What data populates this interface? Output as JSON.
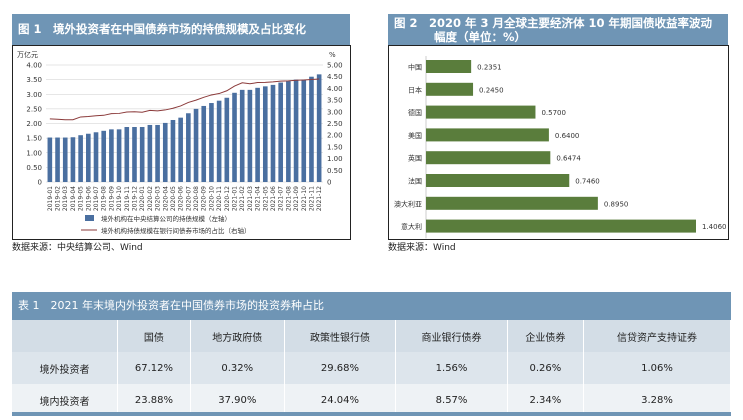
{
  "fig1": {
    "title": "图 1　境外投资者在中国债券市场的持债规模及占比变化",
    "source": "数据来源：中央结算公司、Wind",
    "chart_data": {
      "type": "bar+line",
      "left_unit": "万亿元",
      "right_unit": "%",
      "ylim_left": [
        0,
        4
      ],
      "ylim_right": [
        0,
        5
      ],
      "left_ticks": [
        "0",
        "0.50",
        "1.00",
        "1.50",
        "2.00",
        "2.50",
        "3.00",
        "3.50",
        "4.00"
      ],
      "right_ticks": [
        "0",
        "0.50",
        "1.00",
        "1.50",
        "2.00",
        "2.50",
        "3.00",
        "3.50",
        "4.00",
        "4.50",
        "5.00"
      ],
      "categories": [
        "2019-01",
        "2019-02",
        "2019-03",
        "2019-04",
        "2019-05",
        "2019-06",
        "2019-07",
        "2019-08",
        "2019-09",
        "2019-10",
        "2019-11",
        "2019-12",
        "2020-01",
        "2020-02",
        "2020-03",
        "2020-04",
        "2020-05",
        "2020-06",
        "2020-07",
        "2020-08",
        "2020-09",
        "2020-10",
        "2020-11",
        "2020-12",
        "2021-01",
        "2021-02",
        "2021-03",
        "2021-04",
        "2021-05",
        "2021-06",
        "2021-07",
        "2021-08",
        "2021-09",
        "2021-10",
        "2021-11",
        "2021-12"
      ],
      "series": [
        {
          "name": "境外机构在中央结算公司的持债规模（左轴）",
          "type": "bar",
          "color": "#4a6fa0",
          "values": [
            1.52,
            1.52,
            1.52,
            1.53,
            1.6,
            1.65,
            1.7,
            1.75,
            1.8,
            1.8,
            1.88,
            1.88,
            1.88,
            1.95,
            1.95,
            2.02,
            2.12,
            2.2,
            2.35,
            2.5,
            2.6,
            2.7,
            2.78,
            2.88,
            3.05,
            3.15,
            3.15,
            3.22,
            3.27,
            3.32,
            3.4,
            3.45,
            3.5,
            3.5,
            3.6,
            3.68
          ]
        },
        {
          "name": "境外机构持债规模在银行间债券市场的占比（右轴）",
          "type": "line",
          "color": "#8b3a3a",
          "values": [
            2.7,
            2.68,
            2.66,
            2.66,
            2.78,
            2.8,
            2.83,
            2.85,
            2.92,
            2.93,
            2.99,
            3.0,
            2.98,
            3.06,
            3.04,
            3.08,
            3.15,
            3.25,
            3.4,
            3.5,
            3.62,
            3.72,
            3.78,
            3.9,
            4.1,
            4.24,
            4.2,
            4.25,
            4.26,
            4.28,
            4.31,
            4.32,
            4.35,
            4.36,
            4.38,
            4.4
          ]
        }
      ]
    }
  },
  "fig2": {
    "title_line1": "图 2　2020 年 3 月全球主要经济体 10 年期国债收益率波动",
    "title_line2": "幅度（单位：%）",
    "source": "数据来源：Wind",
    "chart_data": {
      "type": "bar",
      "orientation": "horizontal",
      "color": "#5a7d3c",
      "categories": [
        "中国",
        "日本",
        "德国",
        "美国",
        "英国",
        "法国",
        "澳大利亚",
        "意大利"
      ],
      "values": [
        0.2351,
        0.245,
        0.57,
        0.64,
        0.6474,
        0.746,
        0.895,
        1.406
      ],
      "labels": [
        "0.2351",
        "0.2450",
        "0.5700",
        "0.6400",
        "0.6474",
        "0.7460",
        "0.8950",
        "1.4060"
      ]
    }
  },
  "table1": {
    "title": "表 1　2021 年末境内外投资者在中国债券市场的投资券种占比",
    "headers": [
      "",
      "国债",
      "地方政府债",
      "政策性银行债",
      "商业银行债券",
      "企业债券",
      "信贷资产支持证券"
    ],
    "rows": [
      [
        "境外投资者",
        "67.12%",
        "0.32%",
        "29.68%",
        "1.56%",
        "0.26%",
        "1.06%"
      ],
      [
        "境内投资者",
        "23.88%",
        "37.90%",
        "24.04%",
        "8.57%",
        "2.34%",
        "3.28%"
      ]
    ]
  }
}
